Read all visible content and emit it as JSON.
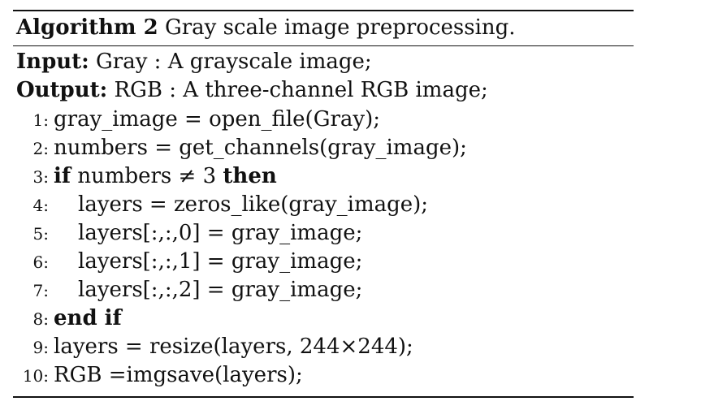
{
  "algorithm": {
    "caption_keyword": "Algorithm 2",
    "caption_text": "Gray scale image preprocessing.",
    "input_label": "Input:",
    "input_text": "Gray : A grayscale image;",
    "output_label": "Output:",
    "output_text": "RGB : A three-channel RGB image;",
    "steps": [
      {
        "num": "1:",
        "text": "gray_image = open_file(Gray);"
      },
      {
        "num": "2:",
        "text": "numbers = get_channels(gray_image);"
      },
      {
        "num": "3:",
        "kw1": "if",
        "text": "numbers ≠ 3",
        "kw2": "then"
      },
      {
        "num": "4:",
        "text": "layers = zeros_like(gray_image);"
      },
      {
        "num": "5:",
        "text": "layers[:,:,0] = gray_image;"
      },
      {
        "num": "6:",
        "text": "layers[:,:,1] = gray_image;"
      },
      {
        "num": "7:",
        "text": "layers[:,:,2] = gray_image;"
      },
      {
        "num": "8:",
        "kw1": "end if"
      },
      {
        "num": "9:",
        "text": "layers = resize(layers, 244×244);"
      },
      {
        "num": "10:",
        "text": "RGB =imgsave(layers);"
      }
    ]
  }
}
